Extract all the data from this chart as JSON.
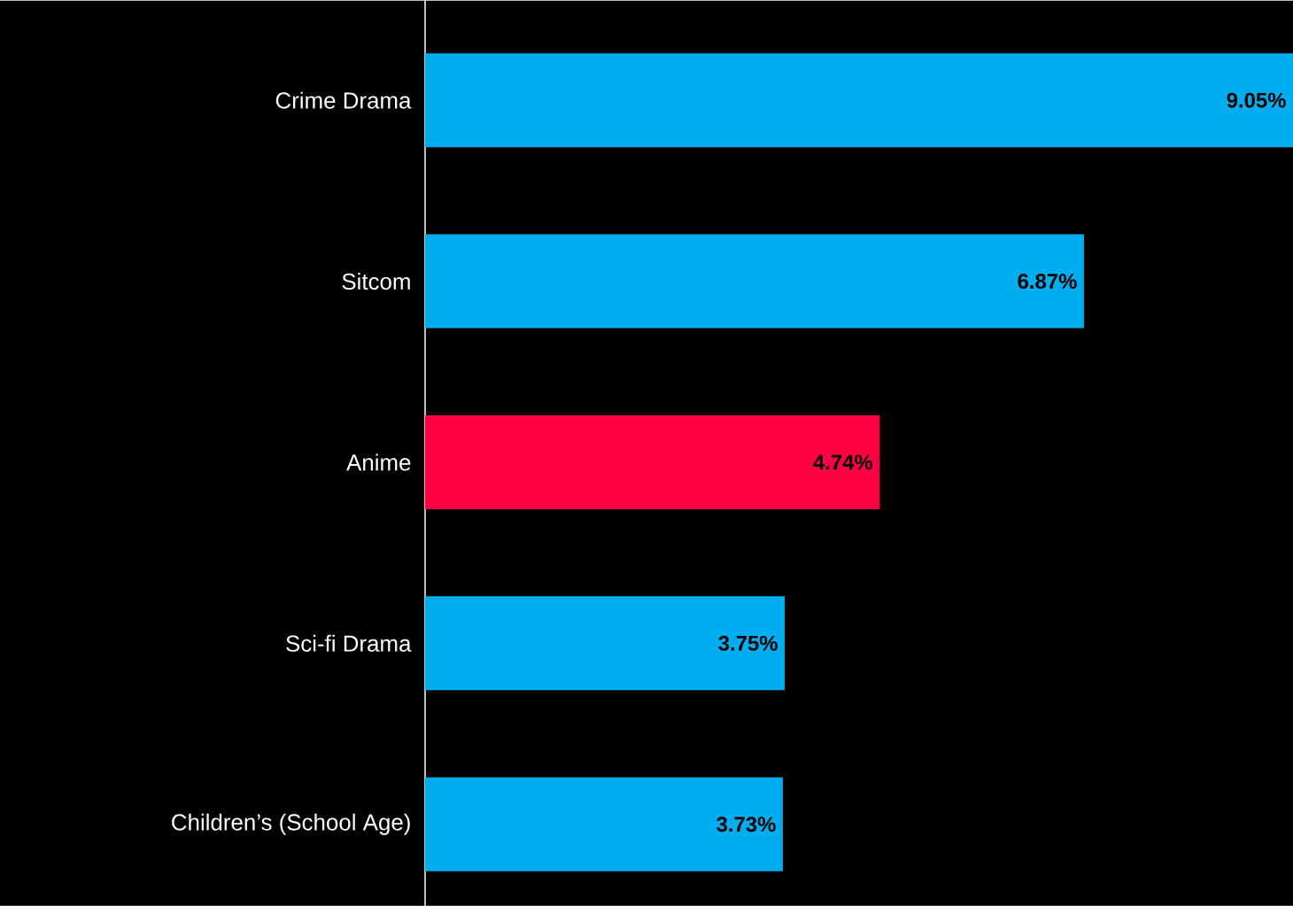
{
  "chart_data": {
    "type": "bar",
    "orientation": "horizontal",
    "categories": [
      "Crime Drama",
      "Sitcom",
      "Anime",
      "Sci-fi Drama",
      "Children’s (School Age)"
    ],
    "values": [
      9.05,
      6.87,
      4.74,
      3.75,
      3.73
    ],
    "colors": [
      "#00aeef",
      "#00aeef",
      "#ff0044",
      "#00aeef",
      "#00aeef"
    ],
    "value_labels": [
      "9.05%",
      "6.87%",
      "4.74%",
      "3.75%",
      "3.73%"
    ],
    "xlim": [
      0,
      9.05
    ],
    "tick_labels": "y"
  }
}
